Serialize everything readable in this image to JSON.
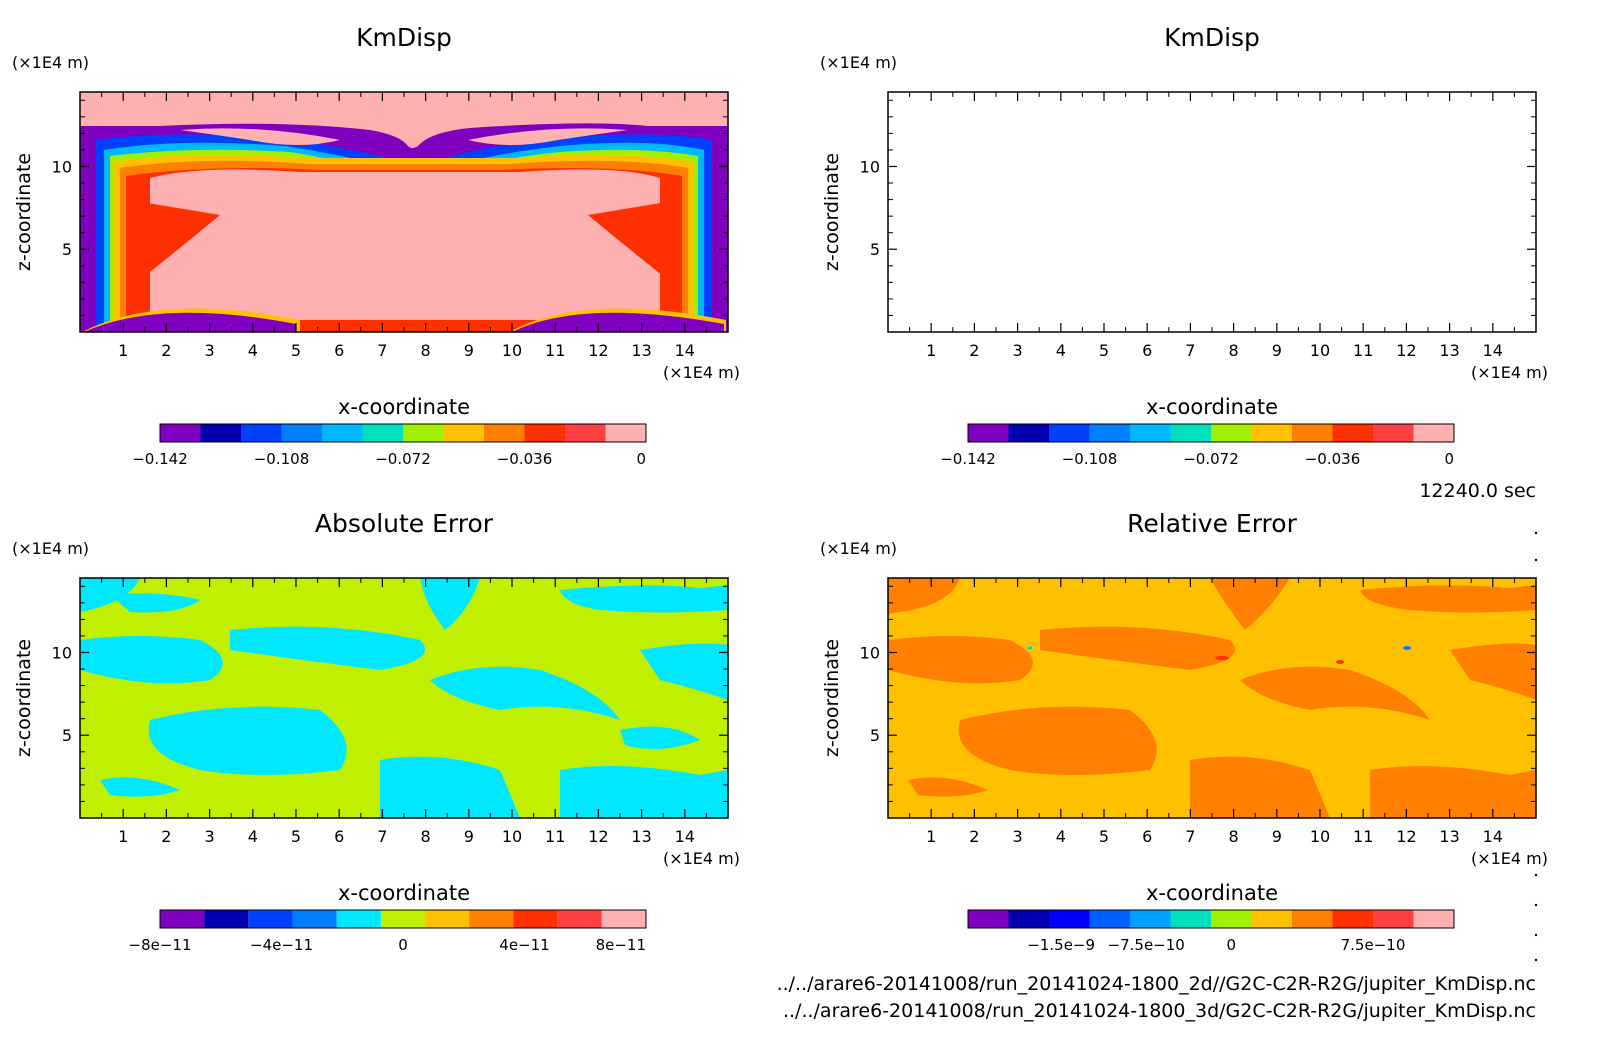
{
  "time_label": "12240.0 sec",
  "footer": {
    "file1": "../../arare6-20141008/run_20141024-1800_2d//G2C-C2R-R2G/jupiter_KmDisp.nc",
    "file2": "../../arare6-20141008/run_20141024-1800_3d/G2C-C2R-R2G/jupiter_KmDisp.nc"
  },
  "chart_data": [
    {
      "type": "heatmap",
      "title": "KmDisp",
      "xlabel": "x-coordinate",
      "ylabel": "z-coordinate",
      "x_unit": "(×1E4 m)",
      "y_unit": "(×1E4 m)",
      "xlim": [
        0,
        15
      ],
      "ylim": [
        0,
        14.5
      ],
      "xticks": [
        "1",
        "2",
        "3",
        "4",
        "5",
        "6",
        "7",
        "8",
        "9",
        "10",
        "11",
        "12",
        "13",
        "14"
      ],
      "yticks": [
        "5",
        "10"
      ],
      "colorbar": {
        "colors": [
          "#8000c0",
          "#0000b0",
          "#0040ff",
          "#0080ff",
          "#00b8ff",
          "#00e0c0",
          "#a0f000",
          "#ffc000",
          "#ff8000",
          "#ff3000",
          "#ff4040",
          "#ffb0b0"
        ],
        "labels": [
          "−0.142",
          "−0.108",
          "−0.072",
          "−0.036",
          "0"
        ]
      }
    },
    {
      "type": "heatmap",
      "title": "KmDisp",
      "xlabel": "x-coordinate",
      "ylabel": "z-coordinate",
      "x_unit": "(×1E4 m)",
      "y_unit": "(×1E4 m)",
      "xlim": [
        0,
        15
      ],
      "ylim": [
        0,
        14.5
      ],
      "xticks": [
        "1",
        "2",
        "3",
        "4",
        "5",
        "6",
        "7",
        "8",
        "9",
        "10",
        "11",
        "12",
        "13",
        "14"
      ],
      "yticks": [
        "5",
        "10"
      ],
      "colorbar": {
        "colors": [
          "#8000c0",
          "#0000b0",
          "#0040ff",
          "#0080ff",
          "#00b8ff",
          "#00e0c0",
          "#a0f000",
          "#ffc000",
          "#ff8000",
          "#ff3000",
          "#ff4040",
          "#ffb0b0"
        ],
        "labels": [
          "−0.142",
          "−0.108",
          "−0.072",
          "−0.036",
          "0"
        ]
      }
    },
    {
      "type": "heatmap",
      "title": "Absolute Error",
      "xlabel": "x-coordinate",
      "ylabel": "z-coordinate",
      "x_unit": "(×1E4 m)",
      "y_unit": "(×1E4 m)",
      "xlim": [
        0,
        15
      ],
      "ylim": [
        0,
        14.5
      ],
      "xticks": [
        "1",
        "2",
        "3",
        "4",
        "5",
        "6",
        "7",
        "8",
        "9",
        "10",
        "11",
        "12",
        "13",
        "14"
      ],
      "yticks": [
        "5",
        "10"
      ],
      "colorbar": {
        "colors": [
          "#8000c0",
          "#0000b0",
          "#0040ff",
          "#0080ff",
          "#00e8ff",
          "#c0f000",
          "#ffc000",
          "#ff8000",
          "#ff3000",
          "#ff4040",
          "#ffb0b0"
        ],
        "labels": [
          "−8e−11",
          "−4e−11",
          "0",
          "4e−11",
          "8e−11"
        ]
      }
    },
    {
      "type": "heatmap",
      "title": "Relative Error",
      "xlabel": "x-coordinate",
      "ylabel": "z-coordinate",
      "x_unit": "(×1E4 m)",
      "y_unit": "(×1E4 m)",
      "xlim": [
        0,
        15
      ],
      "ylim": [
        0,
        14.5
      ],
      "xticks": [
        "1",
        "2",
        "3",
        "4",
        "5",
        "6",
        "7",
        "8",
        "9",
        "10",
        "11",
        "12",
        "13",
        "14"
      ],
      "yticks": [
        "5",
        "10"
      ],
      "colorbar": {
        "colors": [
          "#8000c0",
          "#0000b0",
          "#0000ff",
          "#0060ff",
          "#00a0ff",
          "#00e0c0",
          "#a0f000",
          "#ffc000",
          "#ff8000",
          "#ff3000",
          "#ff4040",
          "#ffb0b0"
        ],
        "labels": [
          "−1.5e−9",
          "−7.5e−10",
          "0",
          "7.5e−10"
        ]
      }
    }
  ]
}
